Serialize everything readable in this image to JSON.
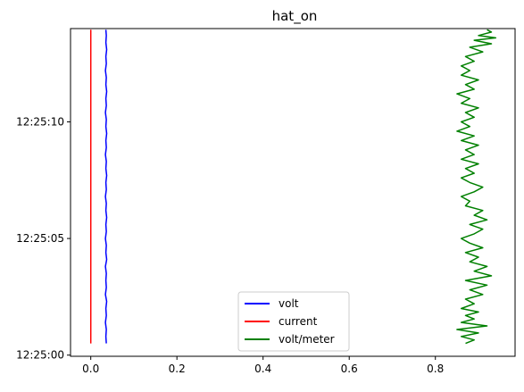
{
  "chart_data": {
    "type": "line",
    "title": "hat_on",
    "xlabel": "",
    "ylabel": "",
    "xlim": [
      -0.047,
      0.985
    ],
    "ylim": [
      -0.05,
      14.0
    ],
    "x_ticks": [
      0.0,
      0.2,
      0.4,
      0.6,
      0.8
    ],
    "x_tick_labels": [
      "0.0",
      "0.2",
      "0.4",
      "0.6",
      "0.8"
    ],
    "y_ticks": [
      0,
      5,
      10
    ],
    "y_tick_labels": [
      "12:25:00",
      "12:25:05",
      "12:25:10"
    ],
    "y_axis_unit": "seconds after 12:25:00",
    "grid": false,
    "legend_position": "lower-center",
    "series": [
      {
        "name": "volt",
        "color": "#0000ff",
        "points": [
          [
            0.036,
            0.5
          ],
          [
            0.035,
            0.8
          ],
          [
            0.036,
            1.1
          ],
          [
            0.034,
            1.4
          ],
          [
            0.036,
            1.7
          ],
          [
            0.035,
            2.0
          ],
          [
            0.037,
            2.3
          ],
          [
            0.034,
            2.6
          ],
          [
            0.036,
            2.9
          ],
          [
            0.035,
            3.2
          ],
          [
            0.036,
            3.5
          ],
          [
            0.034,
            3.8
          ],
          [
            0.037,
            4.1
          ],
          [
            0.035,
            4.4
          ],
          [
            0.036,
            4.7
          ],
          [
            0.034,
            5.0
          ],
          [
            0.036,
            5.3
          ],
          [
            0.035,
            5.6
          ],
          [
            0.037,
            5.9
          ],
          [
            0.035,
            6.2
          ],
          [
            0.036,
            6.5
          ],
          [
            0.034,
            6.8
          ],
          [
            0.036,
            7.1
          ],
          [
            0.035,
            7.4
          ],
          [
            0.037,
            7.7
          ],
          [
            0.035,
            8.0
          ],
          [
            0.036,
            8.3
          ],
          [
            0.034,
            8.6
          ],
          [
            0.036,
            8.9
          ],
          [
            0.035,
            9.2
          ],
          [
            0.037,
            9.5
          ],
          [
            0.035,
            9.8
          ],
          [
            0.036,
            10.1
          ],
          [
            0.034,
            10.4
          ],
          [
            0.036,
            10.7
          ],
          [
            0.035,
            11.0
          ],
          [
            0.037,
            11.3
          ],
          [
            0.035,
            11.6
          ],
          [
            0.036,
            11.9
          ],
          [
            0.034,
            12.2
          ],
          [
            0.036,
            12.5
          ],
          [
            0.035,
            12.8
          ],
          [
            0.037,
            13.1
          ],
          [
            0.035,
            13.4
          ],
          [
            0.036,
            13.7
          ],
          [
            0.035,
            13.95
          ]
        ]
      },
      {
        "name": "current",
        "color": "#ff0000",
        "points": [
          [
            0.0,
            0.5
          ],
          [
            0.0,
            13.95
          ]
        ]
      },
      {
        "name": "volt/meter",
        "color": "#008000",
        "points": [
          [
            0.87,
            0.5
          ],
          [
            0.89,
            0.65
          ],
          [
            0.86,
            0.8
          ],
          [
            0.9,
            0.95
          ],
          [
            0.85,
            1.1
          ],
          [
            0.92,
            1.25
          ],
          [
            0.86,
            1.4
          ],
          [
            0.89,
            1.55
          ],
          [
            0.87,
            1.7
          ],
          [
            0.9,
            1.85
          ],
          [
            0.86,
            2.0
          ],
          [
            0.89,
            2.2
          ],
          [
            0.87,
            2.4
          ],
          [
            0.91,
            2.6
          ],
          [
            0.88,
            2.8
          ],
          [
            0.92,
            3.0
          ],
          [
            0.87,
            3.2
          ],
          [
            0.93,
            3.4
          ],
          [
            0.89,
            3.6
          ],
          [
            0.92,
            3.8
          ],
          [
            0.88,
            4.0
          ],
          [
            0.9,
            4.2
          ],
          [
            0.87,
            4.4
          ],
          [
            0.91,
            4.6
          ],
          [
            0.88,
            4.8
          ],
          [
            0.86,
            5.0
          ],
          [
            0.89,
            5.2
          ],
          [
            0.91,
            5.4
          ],
          [
            0.88,
            5.6
          ],
          [
            0.92,
            5.8
          ],
          [
            0.89,
            6.0
          ],
          [
            0.91,
            6.2
          ],
          [
            0.87,
            6.4
          ],
          [
            0.88,
            6.6
          ],
          [
            0.86,
            6.8
          ],
          [
            0.89,
            7.0
          ],
          [
            0.91,
            7.2
          ],
          [
            0.88,
            7.4
          ],
          [
            0.86,
            7.6
          ],
          [
            0.89,
            7.8
          ],
          [
            0.87,
            8.0
          ],
          [
            0.9,
            8.2
          ],
          [
            0.86,
            8.4
          ],
          [
            0.89,
            8.6
          ],
          [
            0.87,
            8.8
          ],
          [
            0.9,
            9.0
          ],
          [
            0.86,
            9.2
          ],
          [
            0.89,
            9.4
          ],
          [
            0.85,
            9.6
          ],
          [
            0.88,
            9.8
          ],
          [
            0.86,
            10.0
          ],
          [
            0.89,
            10.2
          ],
          [
            0.87,
            10.4
          ],
          [
            0.9,
            10.6
          ],
          [
            0.86,
            10.8
          ],
          [
            0.88,
            11.0
          ],
          [
            0.85,
            11.2
          ],
          [
            0.89,
            11.4
          ],
          [
            0.87,
            11.6
          ],
          [
            0.9,
            11.8
          ],
          [
            0.86,
            12.0
          ],
          [
            0.88,
            12.2
          ],
          [
            0.86,
            12.4
          ],
          [
            0.89,
            12.6
          ],
          [
            0.87,
            12.8
          ],
          [
            0.91,
            13.0
          ],
          [
            0.88,
            13.2
          ],
          [
            0.93,
            13.35
          ],
          [
            0.89,
            13.5
          ],
          [
            0.94,
            13.6
          ],
          [
            0.9,
            13.7
          ],
          [
            0.93,
            13.85
          ],
          [
            0.92,
            13.95
          ]
        ]
      }
    ]
  }
}
